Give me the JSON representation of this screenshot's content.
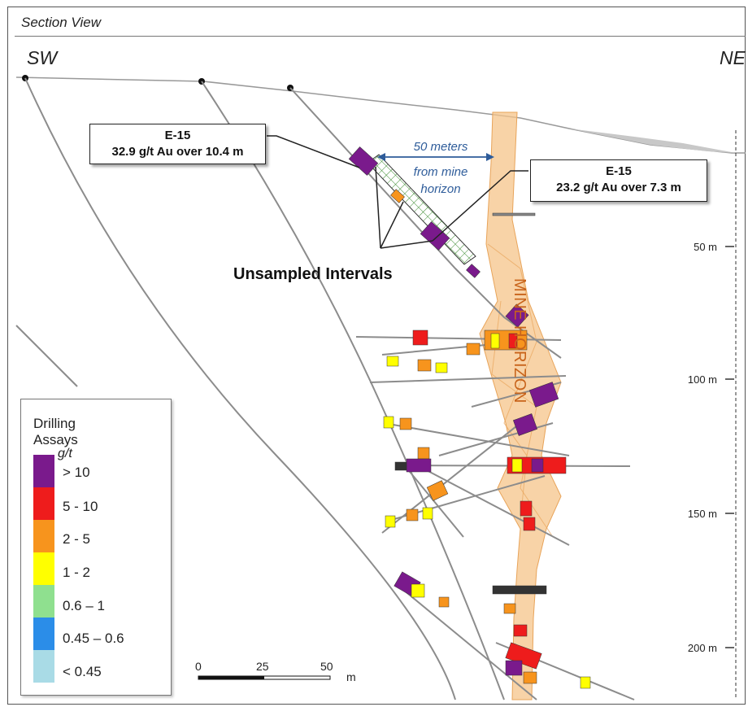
{
  "header": {
    "title": "Section View"
  },
  "directions": {
    "left": "SW",
    "right": "NE"
  },
  "callouts": [
    {
      "line1": "E-15",
      "line2": "32.9 g/t Au over 10.4 m"
    },
    {
      "line1": "E-15",
      "line2": "23.2 g/t Au over 7.3 m"
    }
  ],
  "distance_note": {
    "line1": "50 meters",
    "line2": "from mine",
    "line3": "horizon"
  },
  "unsampled_label": "Unsampled Intervals",
  "mine_horizon_label": "MINE HORIZON",
  "depth_axis": {
    "ticks": [
      "50 m",
      "100 m",
      "150 m",
      "200 m"
    ]
  },
  "legend": {
    "title_line1": "Drilling",
    "title_line2": "Assays",
    "unit": "g/t",
    "items": [
      {
        "label": "> 10",
        "color": "#7a1a8c"
      },
      {
        "label": "5 - 10",
        "color": "#ee1c1c"
      },
      {
        "label": "2 - 5",
        "color": "#f7941d"
      },
      {
        "label": "1 - 2",
        "color": "#ffff00"
      },
      {
        "label": "0.6 – 1",
        "color": "#8fe08f"
      },
      {
        "label": "0.45 – 0.6",
        "color": "#2b8de8"
      },
      {
        "label": "< 0.45",
        "color": "#a9dbe6"
      }
    ]
  },
  "scale_bar": {
    "ticks": [
      "0",
      "25",
      "50"
    ],
    "unit": "m"
  },
  "colors": {
    "mine_horizon_fill": "#f6c48a",
    "drillhole": "#8c8c8c",
    "distance_text": "#2e5c9a",
    "mine_label": "#c8631a"
  }
}
